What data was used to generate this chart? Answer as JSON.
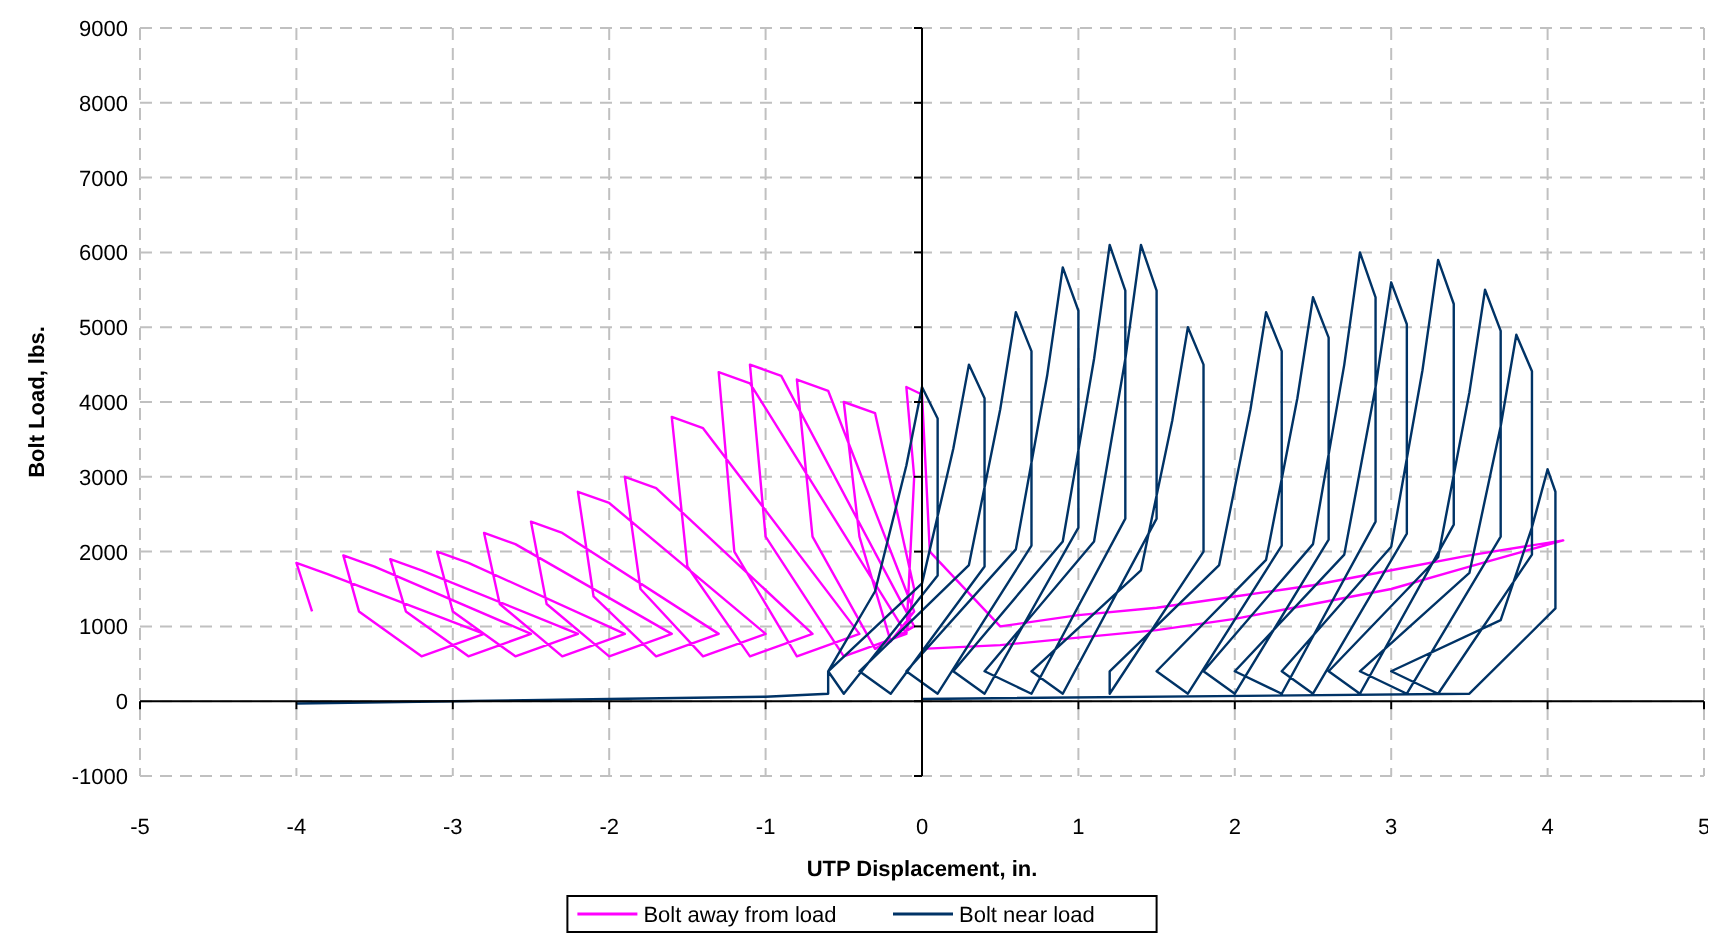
{
  "chart_data": {
    "type": "line",
    "xlabel": "UTP Displacement, in.",
    "ylabel": "Bolt Load, lbs.",
    "xlim": [
      -5,
      5
    ],
    "xticks": [
      -5,
      -4,
      -3,
      -2,
      -1,
      0,
      1,
      2,
      3,
      4,
      5
    ],
    "ylim": [
      -1000,
      9000
    ],
    "yticks": [
      -1000,
      0,
      1000,
      2000,
      3000,
      4000,
      5000,
      6000,
      7000,
      8000,
      9000
    ],
    "grid": true,
    "legend": "bottom",
    "marker": "none",
    "line_style": "solid",
    "series": [
      {
        "name": "Bolt away from load",
        "color": "#ff00ff",
        "x": [
          -3.9,
          -4,
          -3.8,
          -2.8,
          -3.2,
          -3.6,
          -3.7,
          -3.5,
          -2.5,
          -2.9,
          -3.3,
          -3.4,
          -3.2,
          -2.2,
          -2.6,
          -3.0,
          -3.1,
          -2.9,
          -1.9,
          -2.3,
          -2.7,
          -2.8,
          -2.6,
          -1.6,
          -2.0,
          -2.4,
          -2.5,
          -2.3,
          -1.3,
          -1.7,
          -2.1,
          -2.2,
          -2.0,
          -1.0,
          -1.4,
          -1.8,
          -1.9,
          -1.7,
          -0.7,
          -1.1,
          -1.5,
          -1.6,
          -1.4,
          -0.4,
          -0.8,
          -1.2,
          -1.3,
          -1.1,
          -0.1,
          -0.5,
          -1.0,
          -1.1,
          -0.9,
          -0.05,
          -0.3,
          -0.7,
          -0.8,
          -0.6,
          -0.05,
          -0.2,
          -0.4,
          -0.5,
          -0.3,
          -0.05,
          -0.1,
          -0.05,
          -0.1,
          0,
          0.05,
          0.5,
          1,
          1.5,
          2,
          2.5,
          3,
          3.5,
          4.1,
          3.5,
          3,
          2.5,
          2,
          1.5,
          1,
          0.5,
          0
        ],
        "values": [
          1200,
          1850,
          1700,
          900,
          600,
          1200,
          1950,
          1800,
          900,
          600,
          1200,
          1900,
          1750,
          900,
          600,
          1200,
          2000,
          1850,
          900,
          600,
          1300,
          2250,
          2100,
          900,
          600,
          1300,
          2400,
          2250,
          900,
          600,
          1400,
          2800,
          2650,
          900,
          600,
          1500,
          3000,
          2850,
          900,
          600,
          1800,
          3800,
          3650,
          900,
          600,
          2000,
          4400,
          4250,
          900,
          600,
          2200,
          4500,
          4350,
          1000,
          700,
          2200,
          4300,
          4150,
          1200,
          800,
          2200,
          4000,
          3850,
          1500,
          900,
          3000,
          4200,
          4100,
          2000,
          1000,
          1150,
          1250,
          1400,
          1550,
          1750,
          1950,
          2150,
          1800,
          1500,
          1300,
          1100,
          950,
          850,
          750,
          700
        ]
      },
      {
        "name": "Bolt near load",
        "color": "#003366",
        "x": [
          -4,
          -3,
          -2,
          -1,
          -0.6,
          -0.6,
          -0.3,
          -0.1,
          0,
          0.1,
          0.1,
          -0.5,
          -0.6,
          0,
          0.2,
          0.3,
          0.4,
          0.4,
          -0.2,
          -0.4,
          0.3,
          0.5,
          0.6,
          0.7,
          0.7,
          0.1,
          -0.1,
          0.6,
          0.8,
          0.9,
          1.0,
          1.0,
          0.4,
          0.2,
          0.9,
          1.1,
          1.2,
          1.3,
          1.3,
          0.7,
          0.4,
          1.1,
          1.3,
          1.4,
          1.5,
          1.5,
          0.9,
          0.7,
          1.4,
          1.6,
          1.7,
          1.8,
          1.8,
          1.2,
          1.2,
          1.9,
          2.1,
          2.2,
          2.3,
          2.3,
          1.7,
          1.5,
          2.2,
          2.4,
          2.5,
          2.6,
          2.6,
          2.0,
          1.8,
          2.5,
          2.7,
          2.8,
          2.9,
          2.9,
          2.3,
          2.0,
          2.7,
          2.9,
          3.0,
          3.1,
          3.1,
          2.5,
          2.3,
          3.0,
          3.2,
          3.3,
          3.4,
          3.4,
          2.8,
          2.6,
          3.3,
          3.5,
          3.6,
          3.7,
          3.7,
          3.1,
          2.8,
          3.5,
          3.7,
          3.8,
          3.9,
          3.9,
          3.3,
          3.0,
          3.7,
          3.9,
          4.0,
          4.05,
          4.05,
          3.5,
          0
        ],
        "values": [
          -30,
          0,
          30,
          60,
          100,
          400,
          1470,
          3150,
          4200,
          3780,
          1680,
          100,
          400,
          1575,
          3375,
          4500,
          4050,
          1800,
          100,
          400,
          1820,
          3900,
          5200,
          4680,
          2080,
          100,
          400,
          2030,
          4350,
          5800,
          5220,
          2320,
          100,
          400,
          2135,
          4575,
          6100,
          5490,
          2440,
          100,
          400,
          2135,
          4575,
          6100,
          5490,
          2440,
          100,
          400,
          1750,
          3750,
          5000,
          4500,
          2000,
          100,
          400,
          1820,
          3900,
          5200,
          4680,
          2080,
          100,
          400,
          1890,
          4050,
          5400,
          4860,
          2160,
          100,
          400,
          2100,
          4500,
          6000,
          5400,
          2400,
          100,
          400,
          1960,
          4200,
          5600,
          5040,
          2240,
          100,
          400,
          2065,
          4425,
          5900,
          5310,
          2360,
          100,
          400,
          1925,
          4125,
          5500,
          4950,
          2200,
          100,
          400,
          1715,
          3675,
          4900,
          4410,
          1960,
          100,
          400,
          1085,
          2325,
          3100,
          2800,
          1240,
          100,
          30
        ]
      }
    ]
  }
}
